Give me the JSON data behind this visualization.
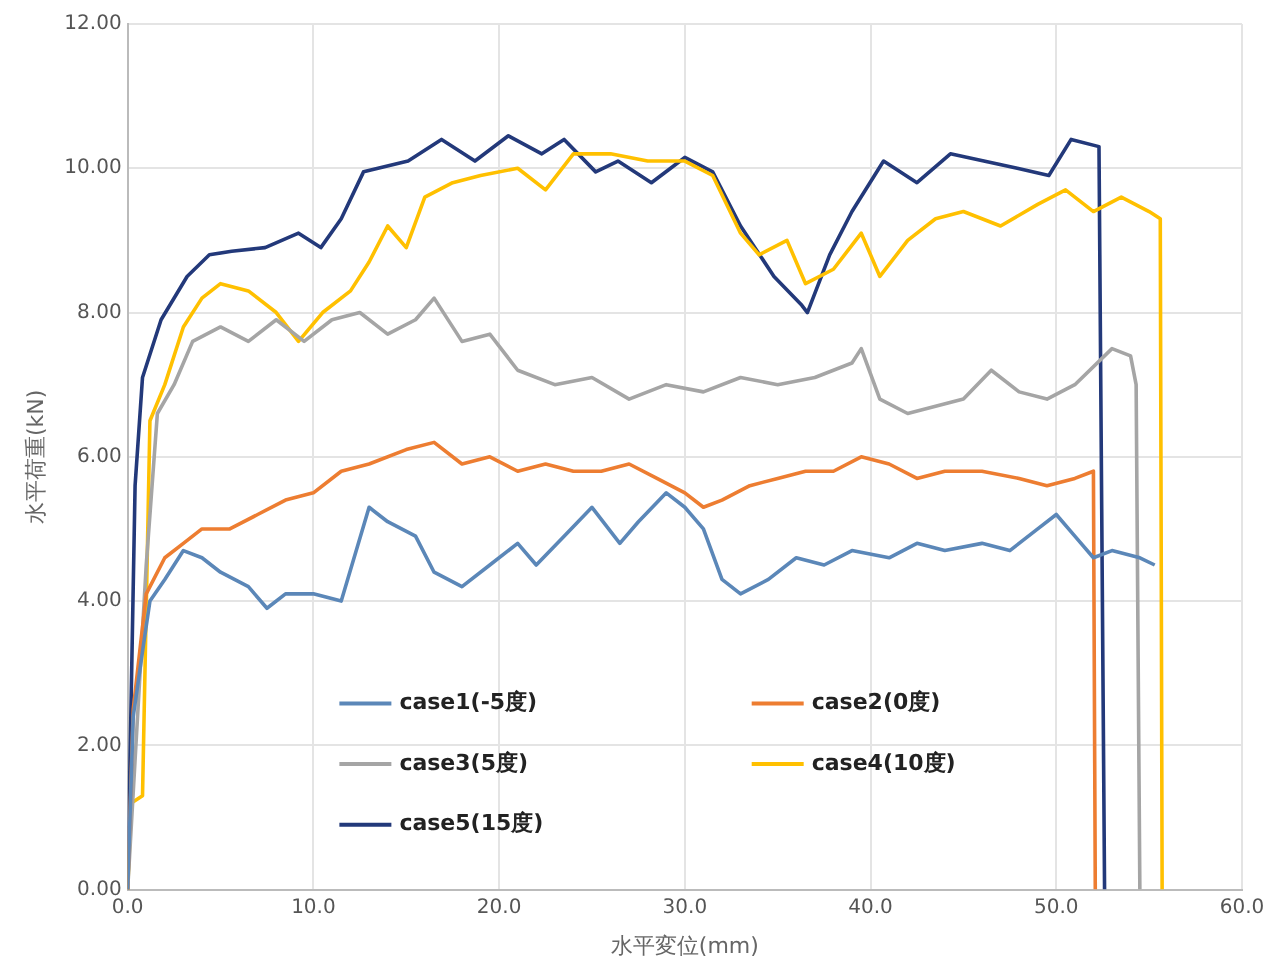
{
  "chart_data": {
    "type": "line",
    "xlabel": "水平変位(mm)",
    "ylabel": "水平荷重(kN)",
    "xlim": [
      0,
      60
    ],
    "xticks": [
      {
        "value": 0,
        "label": "0.0"
      },
      {
        "value": 10,
        "label": "10.0"
      },
      {
        "value": 20,
        "label": "20.0"
      },
      {
        "value": 30,
        "label": "30.0"
      },
      {
        "value": 40,
        "label": "40.0"
      },
      {
        "value": 50,
        "label": "50.0"
      },
      {
        "value": 60,
        "label": "60.0"
      }
    ],
    "ylim": [
      0,
      12
    ],
    "yticks": [
      {
        "value": 0,
        "label": "0.00"
      },
      {
        "value": 2,
        "label": "2.00"
      },
      {
        "value": 4,
        "label": "4.00"
      },
      {
        "value": 6,
        "label": "6.00"
      },
      {
        "value": 8,
        "label": "8.00"
      },
      {
        "value": 10,
        "label": "10.00"
      },
      {
        "value": 12,
        "label": "12.00"
      }
    ],
    "grid": true,
    "legend": "bottom",
    "marker": "none",
    "line_style": "solid",
    "series": [
      {
        "name": "case1(-5度)",
        "color": "#5b87b8",
        "x": [
          0,
          0.3,
          0.8,
          1.2,
          2,
          3,
          4,
          5,
          6.5,
          7.5,
          8.5,
          10,
          11.5,
          13,
          14,
          15.5,
          16.5,
          18,
          19.5,
          21,
          22,
          23.5,
          25,
          26.5,
          27.5,
          29,
          30,
          31,
          32,
          33,
          34.5,
          36,
          37.5,
          39,
          41,
          42.5,
          44,
          46,
          47.5,
          49,
          50,
          51,
          52,
          53,
          54.5,
          55.3
        ],
        "values": [
          0,
          2.4,
          3.3,
          4,
          4.3,
          4.7,
          4.6,
          4.4,
          4.2,
          3.9,
          4.1,
          4.1,
          4,
          5.3,
          5.1,
          4.9,
          4.4,
          4.2,
          4.5,
          4.8,
          4.5,
          4.9,
          5.3,
          4.8,
          5.1,
          5.5,
          5.3,
          5,
          4.3,
          4.1,
          4.3,
          4.6,
          4.5,
          4.7,
          4.6,
          4.8,
          4.7,
          4.8,
          4.7,
          5,
          5.2,
          4.9,
          4.6,
          4.7,
          4.6,
          4.5
        ]
      },
      {
        "name": "case2(0度)",
        "color": "#ed7d31",
        "x": [
          0,
          0.3,
          1,
          2,
          3,
          4,
          5.5,
          7,
          8.5,
          10,
          11.5,
          13,
          15,
          16.5,
          18,
          19.5,
          21,
          22.5,
          24,
          25.5,
          27,
          28.5,
          30,
          31,
          32,
          33.5,
          35,
          36.5,
          38,
          39.5,
          41,
          42.5,
          44,
          46,
          48,
          49.5,
          51,
          52,
          52.1
        ],
        "values": [
          0,
          2.5,
          4.1,
          4.6,
          4.8,
          5,
          5,
          5.2,
          5.4,
          5.5,
          5.8,
          5.9,
          6.1,
          6.2,
          5.9,
          6,
          5.8,
          5.9,
          5.8,
          5.8,
          5.9,
          5.7,
          5.5,
          5.3,
          5.4,
          5.6,
          5.7,
          5.8,
          5.8,
          6,
          5.9,
          5.7,
          5.8,
          5.8,
          5.7,
          5.6,
          5.7,
          5.8,
          0
        ]
      },
      {
        "name": "case3(5度)",
        "color": "#a5a5a5",
        "x": [
          0,
          1,
          1.6,
          2.5,
          3.5,
          5,
          6.5,
          8,
          9.5,
          11,
          12.5,
          14,
          15.5,
          16.5,
          18,
          19.5,
          21,
          23,
          25,
          27,
          29,
          31,
          33,
          35,
          37,
          39,
          39.5,
          40.5,
          42,
          43.5,
          45,
          46.5,
          48,
          49.5,
          51,
          53,
          54,
          54.3,
          54.5
        ],
        "values": [
          0,
          4.5,
          6.6,
          7,
          7.6,
          7.8,
          7.6,
          7.9,
          7.6,
          7.9,
          8,
          7.7,
          7.9,
          8.2,
          7.6,
          7.7,
          7.2,
          7,
          7.1,
          6.8,
          7,
          6.9,
          7.1,
          7,
          7.1,
          7.3,
          7.5,
          6.8,
          6.6,
          6.7,
          6.8,
          7.2,
          6.9,
          6.8,
          7,
          7.5,
          7.4,
          7,
          0
        ]
      },
      {
        "name": "case4(10度)",
        "color": "#ffc000",
        "x": [
          0,
          0.2,
          0.8,
          1.2,
          2,
          3,
          4,
          5,
          6.5,
          8,
          9.2,
          10.5,
          12,
          13,
          14,
          15,
          16,
          17.5,
          19,
          21,
          22.5,
          24,
          26,
          28,
          30,
          31.5,
          33,
          34,
          35.5,
          36.5,
          38,
          39.5,
          40.5,
          42,
          43.5,
          45,
          47,
          49,
          50.5,
          52,
          53.5,
          55,
          55.6,
          55.7
        ],
        "values": [
          0,
          1.2,
          1.3,
          6.5,
          7,
          7.8,
          8.2,
          8.4,
          8.3,
          8,
          7.6,
          8,
          8.3,
          8.7,
          9.2,
          8.9,
          9.6,
          9.8,
          9.9,
          10,
          9.7,
          10.2,
          10.2,
          10.1,
          10.1,
          9.9,
          9.1,
          8.8,
          9,
          8.4,
          8.6,
          9.1,
          8.5,
          9,
          9.3,
          9.4,
          9.2,
          9.5,
          9.7,
          9.4,
          9.6,
          9.4,
          9.3,
          0
        ]
      },
      {
        "name": "case5(15度)",
        "color": "#23397a",
        "x": [
          0,
          0.4,
          0.8,
          1.8,
          3.2,
          4.4,
          5.6,
          7.4,
          9.2,
          10.4,
          11.5,
          12.7,
          15.1,
          16.9,
          18.7,
          20.5,
          22.3,
          23.5,
          25.2,
          26.4,
          28.2,
          30,
          31.5,
          33,
          34.8,
          36.3,
          36.6,
          37.8,
          39,
          40.7,
          42.5,
          44.3,
          46.1,
          47.9,
          49.6,
          50.8,
          52.3,
          52.6
        ],
        "values": [
          0,
          5.6,
          7.1,
          7.9,
          8.5,
          8.8,
          8.85,
          8.9,
          9.1,
          8.9,
          9.3,
          9.95,
          10.1,
          10.4,
          10.1,
          10.45,
          10.2,
          10.4,
          9.95,
          10.1,
          9.8,
          10.15,
          9.95,
          9.2,
          8.5,
          8.1,
          8,
          8.8,
          9.4,
          10.1,
          9.8,
          10.2,
          10.1,
          10,
          9.9,
          10.4,
          10.3,
          0
        ]
      }
    ]
  }
}
